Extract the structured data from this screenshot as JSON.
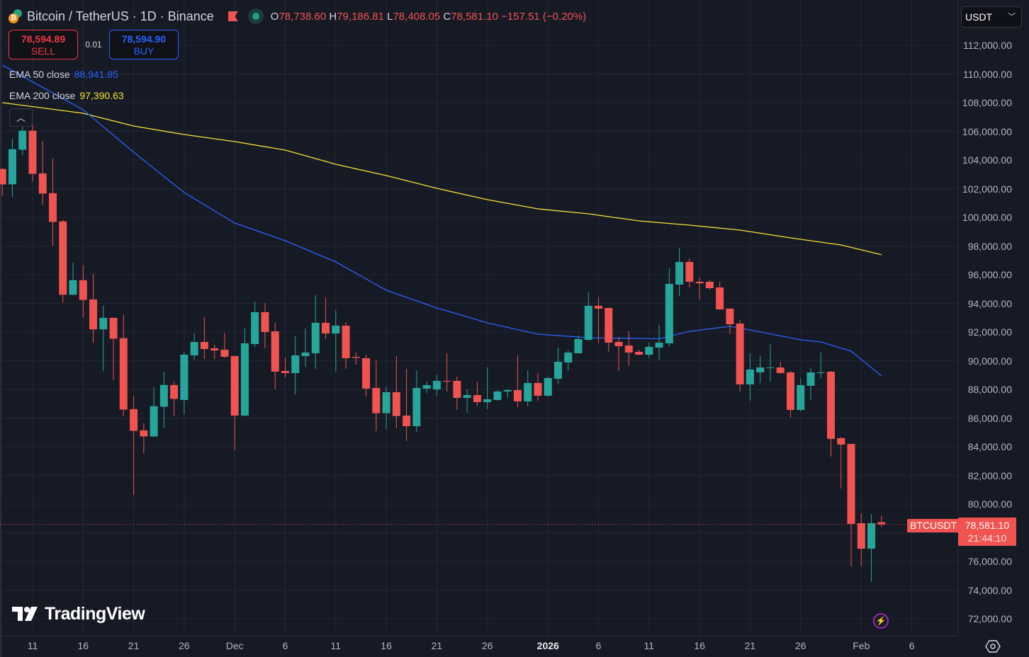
{
  "header": {
    "symbol": "Bitcoin / TetherUS · 1D · Binance",
    "ohlc": {
      "o_label": "O",
      "o": "78,738.60",
      "h_label": "H",
      "h": "79,186.81",
      "l_label": "L",
      "l": "78,408.05",
      "c_label": "C",
      "c": "78,581.10",
      "change": "−157.51 (−0.20%)"
    }
  },
  "trade": {
    "sell_price": "78,594.89",
    "sell_label": "SELL",
    "spread": "0.01",
    "buy_price": "78,594.90",
    "buy_label": "BUY"
  },
  "indicators": {
    "ema50": {
      "label": "EMA 50 close",
      "value": "88,941.85",
      "color": "#2962ff"
    },
    "ema200": {
      "label": "EMA 200 close",
      "value": "97,390.63",
      "color": "#f7e034"
    }
  },
  "currency_select": {
    "value": "USDT"
  },
  "last_price": {
    "symbol": "BTCUSDT",
    "price": "78,581.10",
    "countdown": "21:44:10"
  },
  "branding": {
    "logo_text": "TradingView"
  },
  "colors": {
    "up": "#26a69a",
    "down": "#f05350",
    "background": "#161a25",
    "grid": "#232733"
  },
  "icons": [
    "chevron-up-icon",
    "chevron-down-icon",
    "lightning-icon",
    "settings-icon",
    "bitcoin-icon",
    "tether-icon",
    "flag-icon",
    "market-status-icon"
  ],
  "chart_data": {
    "type": "candlestick",
    "ylim": [
      72000,
      112000
    ],
    "grid": true,
    "price_ticks": [
      "112,000.00",
      "110,000.00",
      "108,000.00",
      "106,000.00",
      "104,000.00",
      "102,000.00",
      "100,000.00",
      "98,000.00",
      "96,000.00",
      "94,000.00",
      "92,000.00",
      "90,000.00",
      "88,000.00",
      "86,000.00",
      "84,000.00",
      "82,000.00",
      "80,000.00",
      "78,000.00",
      "76,000.00",
      "74,000.00",
      "72,000.00"
    ],
    "time_ticks": [
      {
        "label": "11",
        "date": "2025-11-11"
      },
      {
        "label": "16",
        "date": "2025-11-16"
      },
      {
        "label": "21",
        "date": "2025-11-21"
      },
      {
        "label": "26",
        "date": "2025-11-26"
      },
      {
        "label": "Dec",
        "date": "2025-12-01"
      },
      {
        "label": "6",
        "date": "2025-12-06"
      },
      {
        "label": "11",
        "date": "2025-12-11"
      },
      {
        "label": "16",
        "date": "2025-12-16"
      },
      {
        "label": "21",
        "date": "2025-12-21"
      },
      {
        "label": "26",
        "date": "2025-12-26"
      },
      {
        "label": "2026",
        "date": "2026-01-01",
        "strong": true
      },
      {
        "label": "6",
        "date": "2026-01-06"
      },
      {
        "label": "11",
        "date": "2026-01-11"
      },
      {
        "label": "16",
        "date": "2026-01-16"
      },
      {
        "label": "21",
        "date": "2026-01-21"
      },
      {
        "label": "26",
        "date": "2026-01-26"
      },
      {
        "label": "Feb",
        "date": "2026-02-01"
      },
      {
        "label": "6",
        "date": "2026-02-06"
      }
    ],
    "candles": [
      [
        "2025-11-08",
        103374,
        103425,
        101503,
        102302
      ],
      [
        "2025-11-09",
        102302,
        105500,
        101418,
        104751
      ],
      [
        "2025-11-10",
        104717,
        106656,
        104326,
        106044
      ],
      [
        "2025-11-11",
        106044,
        106452,
        102489,
        103034
      ],
      [
        "2025-11-12",
        103068,
        105330,
        100874,
        101656
      ],
      [
        "2025-11-13",
        101690,
        104105,
        98034,
        99683
      ],
      [
        "2025-11-14",
        99717,
        99854,
        94054,
        94598
      ],
      [
        "2025-11-15",
        94598,
        96843,
        94580,
        95619
      ],
      [
        "2025-11-16",
        95619,
        96656,
        93017,
        94242
      ],
      [
        "2025-11-17",
        94276,
        96061,
        91231,
        92184
      ],
      [
        "2025-11-18",
        92184,
        93833,
        89259,
        92990
      ],
      [
        "2025-11-19",
        92990,
        93000,
        88630,
        91537
      ],
      [
        "2025-11-20",
        91571,
        93204,
        86147,
        86589
      ],
      [
        "2025-11-21",
        86623,
        87525,
        80637,
        85109
      ],
      [
        "2025-11-22",
        85143,
        85637,
        83528,
        84718
      ],
      [
        "2025-11-23",
        84718,
        88153,
        84680,
        86827
      ],
      [
        "2025-11-24",
        86793,
        89242,
        85313,
        88306
      ],
      [
        "2025-11-25",
        88306,
        88561,
        86147,
        87337
      ],
      [
        "2025-11-26",
        87260,
        90604,
        86272,
        90421
      ],
      [
        "2025-11-27",
        90372,
        91902,
        90026,
        91310
      ],
      [
        "2025-11-28",
        91310,
        93038,
        90125,
        90816
      ],
      [
        "2025-11-29",
        90865,
        91113,
        90125,
        90717
      ],
      [
        "2025-11-30",
        90767,
        91952,
        90200,
        90273
      ],
      [
        "2025-12-01",
        90322,
        90372,
        83754,
        86174
      ],
      [
        "2025-12-02",
        86174,
        92248,
        86124,
        91211
      ],
      [
        "2025-12-03",
        91162,
        94124,
        90964,
        93384
      ],
      [
        "2025-12-04",
        93384,
        94025,
        90865,
        92001
      ],
      [
        "2025-12-05",
        92051,
        92643,
        88001,
        89235
      ],
      [
        "2025-12-06",
        89285,
        90223,
        88840,
        89137
      ],
      [
        "2025-12-07",
        89137,
        91705,
        87655,
        90372
      ],
      [
        "2025-12-08",
        90322,
        92248,
        89581,
        90569
      ],
      [
        "2025-12-09",
        90520,
        94568,
        89433,
        92643
      ],
      [
        "2025-12-10",
        92643,
        94420,
        91507,
        91902
      ],
      [
        "2025-12-11",
        91902,
        93532,
        89235,
        92445
      ],
      [
        "2025-12-12",
        92445,
        92692,
        89433,
        90174
      ],
      [
        "2025-12-13",
        90270,
        90569,
        89729,
        90200
      ],
      [
        "2025-12-14",
        90174,
        90421,
        87507,
        88051
      ],
      [
        "2025-12-15",
        88100,
        90026,
        85087,
        86338
      ],
      [
        "2025-12-16",
        86338,
        88150,
        85236,
        87803
      ],
      [
        "2025-12-17",
        87803,
        90322,
        85285,
        86140
      ],
      [
        "2025-12-18",
        86174,
        89433,
        84396,
        85434
      ],
      [
        "2025-12-19",
        85434,
        89334,
        85039,
        88100
      ],
      [
        "2025-12-20",
        88051,
        88545,
        87753,
        88298
      ],
      [
        "2025-12-21",
        88001,
        89038,
        87556,
        88594
      ],
      [
        "2025-12-22",
        88594,
        90520,
        87852,
        88550
      ],
      [
        "2025-12-23",
        88594,
        88890,
        86569,
        87408
      ],
      [
        "2025-12-24",
        87408,
        88001,
        86371,
        87605
      ],
      [
        "2025-12-25",
        87605,
        88545,
        86865,
        87112
      ],
      [
        "2025-12-26",
        87112,
        89532,
        86618,
        87310
      ],
      [
        "2025-12-27",
        87260,
        87951,
        87211,
        87852
      ],
      [
        "2025-12-28",
        87852,
        88051,
        87408,
        87951
      ],
      [
        "2025-12-29",
        87951,
        90372,
        86766,
        87161
      ],
      [
        "2025-12-30",
        87161,
        89334,
        86815,
        88446
      ],
      [
        "2025-12-31",
        88446,
        89137,
        87211,
        87556
      ],
      [
        "2026-01-01",
        87556,
        88890,
        87507,
        88791
      ],
      [
        "2026-01-02",
        88742,
        90915,
        88347,
        89927
      ],
      [
        "2026-01-03",
        89877,
        90717,
        89300,
        90569
      ],
      [
        "2026-01-04",
        90520,
        91754,
        90500,
        91507
      ],
      [
        "2026-01-05",
        91458,
        94766,
        91400,
        93828
      ],
      [
        "2026-01-06",
        93828,
        94420,
        91211,
        93631
      ],
      [
        "2026-01-07",
        93680,
        93700,
        90619,
        91260
      ],
      [
        "2026-01-08",
        91310,
        91655,
        89285,
        91013
      ],
      [
        "2026-01-09",
        91063,
        92051,
        89631,
        90569
      ],
      [
        "2026-01-10",
        90619,
        90767,
        90372,
        90421
      ],
      [
        "2026-01-11",
        90421,
        91260,
        90174,
        90964
      ],
      [
        "2026-01-12",
        90915,
        92495,
        90075,
        91260
      ],
      [
        "2026-01-13",
        91211,
        96445,
        91013,
        95359
      ],
      [
        "2026-01-14",
        95310,
        97877,
        94519,
        96889
      ],
      [
        "2026-01-15",
        96889,
        97136,
        95112,
        95507
      ],
      [
        "2026-01-16",
        95507,
        95803,
        94272,
        95400
      ],
      [
        "2026-01-17",
        95507,
        95606,
        94964,
        95063
      ],
      [
        "2026-01-18",
        95112,
        95507,
        93550,
        93581
      ],
      [
        "2026-01-19",
        93631,
        93650,
        91853,
        92544
      ],
      [
        "2026-01-20",
        92593,
        92840,
        87853,
        88347
      ],
      [
        "2026-01-21",
        88347,
        90520,
        87211,
        89384
      ],
      [
        "2026-01-22",
        89186,
        90322,
        88446,
        89532
      ],
      [
        "2026-01-23",
        89500,
        91162,
        88545,
        89532
      ],
      [
        "2026-01-24",
        89532,
        89927,
        89100,
        89137
      ],
      [
        "2026-01-25",
        89186,
        89285,
        86026,
        86569
      ],
      [
        "2026-01-26",
        86569,
        88791,
        86470,
        88298
      ],
      [
        "2026-01-27",
        88248,
        89483,
        87260,
        89186
      ],
      [
        "2026-01-28",
        89140,
        90569,
        88791,
        89186
      ],
      [
        "2026-01-29",
        89235,
        89285,
        83310,
        84544
      ],
      [
        "2026-01-30",
        84594,
        84692,
        81087,
        84149
      ],
      [
        "2026-01-31",
        84198,
        84198,
        75654,
        78618
      ],
      [
        "2026-02-01",
        78667,
        79359,
        75654,
        76890
      ],
      [
        "2026-02-02",
        76890,
        79310,
        74570,
        78667
      ],
      [
        "2026-02-03",
        78738.6,
        79186.81,
        78408.05,
        78581.1
      ]
    ],
    "ema50": [
      [
        "2025-11-08",
        110617
      ],
      [
        "2025-11-16",
        107506
      ],
      [
        "2025-11-21",
        104544
      ],
      [
        "2025-11-26",
        101729
      ],
      [
        "2025-12-01",
        99605
      ],
      [
        "2025-12-06",
        98370
      ],
      [
        "2025-12-11",
        96889
      ],
      [
        "2025-12-16",
        94914
      ],
      [
        "2025-12-21",
        93680
      ],
      [
        "2025-12-26",
        92643
      ],
      [
        "2025-12-31",
        91853
      ],
      [
        "2026-01-05",
        91606
      ],
      [
        "2026-01-10",
        91556
      ],
      [
        "2026-01-12",
        91530
      ],
      [
        "2026-01-15",
        92050
      ],
      [
        "2026-01-19",
        92396
      ],
      [
        "2026-01-21",
        92150
      ],
      [
        "2026-01-26",
        91457
      ],
      [
        "2026-01-28",
        91310
      ],
      [
        "2026-01-31",
        90668
      ],
      [
        "2026-02-03",
        88941.85
      ]
    ],
    "ema200": [
      [
        "2025-11-08",
        108000
      ],
      [
        "2025-11-16",
        107260
      ],
      [
        "2025-11-21",
        106370
      ],
      [
        "2025-11-26",
        105778
      ],
      [
        "2025-12-01",
        105284
      ],
      [
        "2025-12-06",
        104692
      ],
      [
        "2025-12-11",
        103704
      ],
      [
        "2025-12-16",
        102914
      ],
      [
        "2025-12-21",
        102025
      ],
      [
        "2025-12-26",
        101235
      ],
      [
        "2025-12-31",
        100593
      ],
      [
        "2026-01-05",
        100247
      ],
      [
        "2026-01-10",
        99753
      ],
      [
        "2026-01-15",
        99457
      ],
      [
        "2026-01-20",
        99111
      ],
      [
        "2026-01-25",
        98568
      ],
      [
        "2026-01-30",
        98074
      ],
      [
        "2026-02-03",
        97390.63
      ]
    ]
  }
}
